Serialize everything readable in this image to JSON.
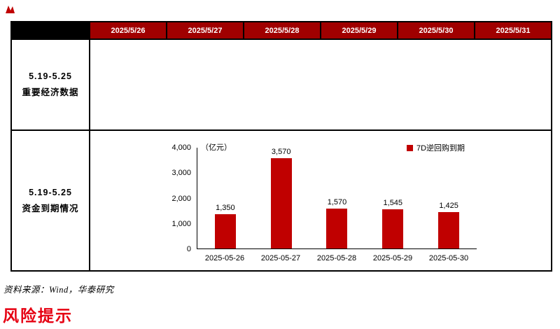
{
  "table": {
    "header_dates": [
      "2025/5/26",
      "2025/5/27",
      "2025/5/28",
      "2025/5/29",
      "2025/5/30",
      "2025/5/31"
    ],
    "rows": [
      {
        "period": "5.19-5.25",
        "title": "重要经济数据"
      },
      {
        "period": "5.19-5.25",
        "title": "资金到期情况"
      }
    ]
  },
  "chart_data": {
    "type": "bar",
    "unit_label": "（亿元）",
    "legend": "7D逆回购到期",
    "legend_position": "top-right",
    "categories": [
      "2025-05-26",
      "2025-05-27",
      "2025-05-28",
      "2025-05-29",
      "2025-05-30"
    ],
    "values": [
      1350,
      3570,
      1570,
      1545,
      1425
    ],
    "value_labels": [
      "1,350",
      "3,570",
      "1,570",
      "1,545",
      "1,425"
    ],
    "ylim": [
      0,
      4000
    ],
    "yticks": [
      "0",
      "1,000",
      "2,000",
      "3,000",
      "4,000"
    ],
    "grid": false,
    "bar_color": "#C00000"
  },
  "footer": {
    "source_note": "资料来源：Wind，华泰研究",
    "section_title": "风险提示"
  },
  "colors": {
    "header_bg": "#A00000",
    "table_border": "#000000",
    "bar": "#C00000",
    "section_title_red": "#E60012"
  }
}
